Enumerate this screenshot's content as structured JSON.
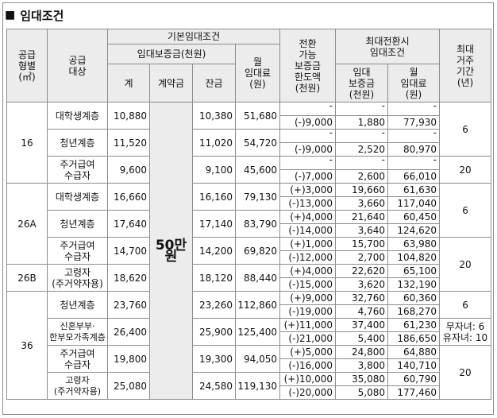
{
  "title": "임대조건",
  "headers": {
    "supply_type": "공급\n형별\n(㎡)",
    "target": "공급\n대상",
    "basic": "기본임대조건",
    "deposit_group": "임대보증금(천원)",
    "total": "계",
    "contract": "계약금",
    "balance": "잔금",
    "monthly_rent": "월\n임대료\n(원)",
    "convertible": "전환\n가능\n보증금\n한도액\n(천원)",
    "max_conv_group": "최대전환시\n임대조건",
    "conv_deposit": "임대\n보증금\n(천원)",
    "conv_rent": "월\n임대료\n(원)",
    "max_period": "최대\n거주\n기간\n(년)"
  },
  "contract_deposit": "50만원",
  "groups": [
    {
      "type": "16",
      "rows": [
        {
          "target": "대학생계층",
          "total": "10,880",
          "balance": "10,380",
          "rent": "51,680",
          "max_period": "6",
          "conv": [
            {
              "limit": "-",
              "deposit": "-",
              "rent": "-"
            },
            {
              "limit": "(-)9,000",
              "deposit": "1,880",
              "rent": "77,930"
            }
          ]
        },
        {
          "target": "청년계층",
          "total": "11,520",
          "balance": "11,020",
          "rent": "54,720",
          "conv": [
            {
              "limit": "-",
              "deposit": "-",
              "rent": "-"
            },
            {
              "limit": "(-)9,000",
              "deposit": "2,520",
              "rent": "80,970"
            }
          ]
        },
        {
          "target": "주거급여\n수급자",
          "total": "9,600",
          "balance": "9,100",
          "rent": "45,600",
          "max_period": "20",
          "conv": [
            {
              "limit": "-",
              "deposit": "-",
              "rent": "-"
            },
            {
              "limit": "(-)7,000",
              "deposit": "2,600",
              "rent": "66,010"
            }
          ]
        }
      ]
    },
    {
      "type": "26A",
      "rows": [
        {
          "target": "대학생계층",
          "total": "16,660",
          "balance": "16,160",
          "rent": "79,130",
          "max_period": "6",
          "conv": [
            {
              "limit": "(+)3,000",
              "deposit": "19,660",
              "rent": "61,630"
            },
            {
              "limit": "(-)13,000",
              "deposit": "3,660",
              "rent": "117,040"
            }
          ]
        },
        {
          "target": "청년계층",
          "total": "17,640",
          "balance": "17,140",
          "rent": "83,790",
          "conv": [
            {
              "limit": "(+)4,000",
              "deposit": "21,640",
              "rent": "60,450"
            },
            {
              "limit": "(-)14,000",
              "deposit": "3,640",
              "rent": "124,620"
            }
          ]
        },
        {
          "target": "주거급여\n수급자",
          "total": "14,700",
          "balance": "14,200",
          "rent": "69,820",
          "max_period": "20",
          "conv": [
            {
              "limit": "(+)1,000",
              "deposit": "15,700",
              "rent": "63,980"
            },
            {
              "limit": "(-)12,000",
              "deposit": "2,700",
              "rent": "104,820"
            }
          ]
        }
      ]
    },
    {
      "type": "26B",
      "rows": [
        {
          "target": "고령자\n(주거약자용)",
          "total": "18,620",
          "balance": "18,120",
          "rent": "88,440",
          "conv": [
            {
              "limit": "(+)4,000",
              "deposit": "22,620",
              "rent": "65,100"
            },
            {
              "limit": "(-)15,000",
              "deposit": "3,620",
              "rent": "132,190"
            }
          ]
        }
      ]
    },
    {
      "type": "36",
      "rows": [
        {
          "target": "청년계층",
          "total": "23,760",
          "balance": "23,260",
          "rent": "112,860",
          "max_period": "6",
          "conv": [
            {
              "limit": "(+)9,000",
              "deposit": "32,760",
              "rent": "60,360"
            },
            {
              "limit": "(-)19,000",
              "deposit": "4,760",
              "rent": "168,270"
            }
          ]
        },
        {
          "target": "신혼부부·\n한부모가족계층",
          "total": "26,400",
          "balance": "25,900",
          "rent": "125,400",
          "max_period": "무자녀:  6\n유자녀:  10",
          "conv": [
            {
              "limit": "(+)11,000",
              "deposit": "37,400",
              "rent": "61,230"
            },
            {
              "limit": "(-)21,000",
              "deposit": "5,400",
              "rent": "186,650"
            }
          ]
        },
        {
          "target": "주거급여\n수급자",
          "total": "19,800",
          "balance": "19,300",
          "rent": "94,050",
          "max_period": "20",
          "conv": [
            {
              "limit": "(+)5,000",
              "deposit": "24,800",
              "rent": "64,880"
            },
            {
              "limit": "(-)16,000",
              "deposit": "3,800",
              "rent": "140,710"
            }
          ]
        },
        {
          "target": "고령자\n(주거약자용)",
          "total": "25,080",
          "balance": "24,580",
          "rent": "119,130",
          "conv": [
            {
              "limit": "(+)10,000",
              "deposit": "35,080",
              "rent": "60,790"
            },
            {
              "limit": "(-)20,000",
              "deposit": "5,080",
              "rent": "177,460"
            }
          ]
        }
      ]
    }
  ]
}
